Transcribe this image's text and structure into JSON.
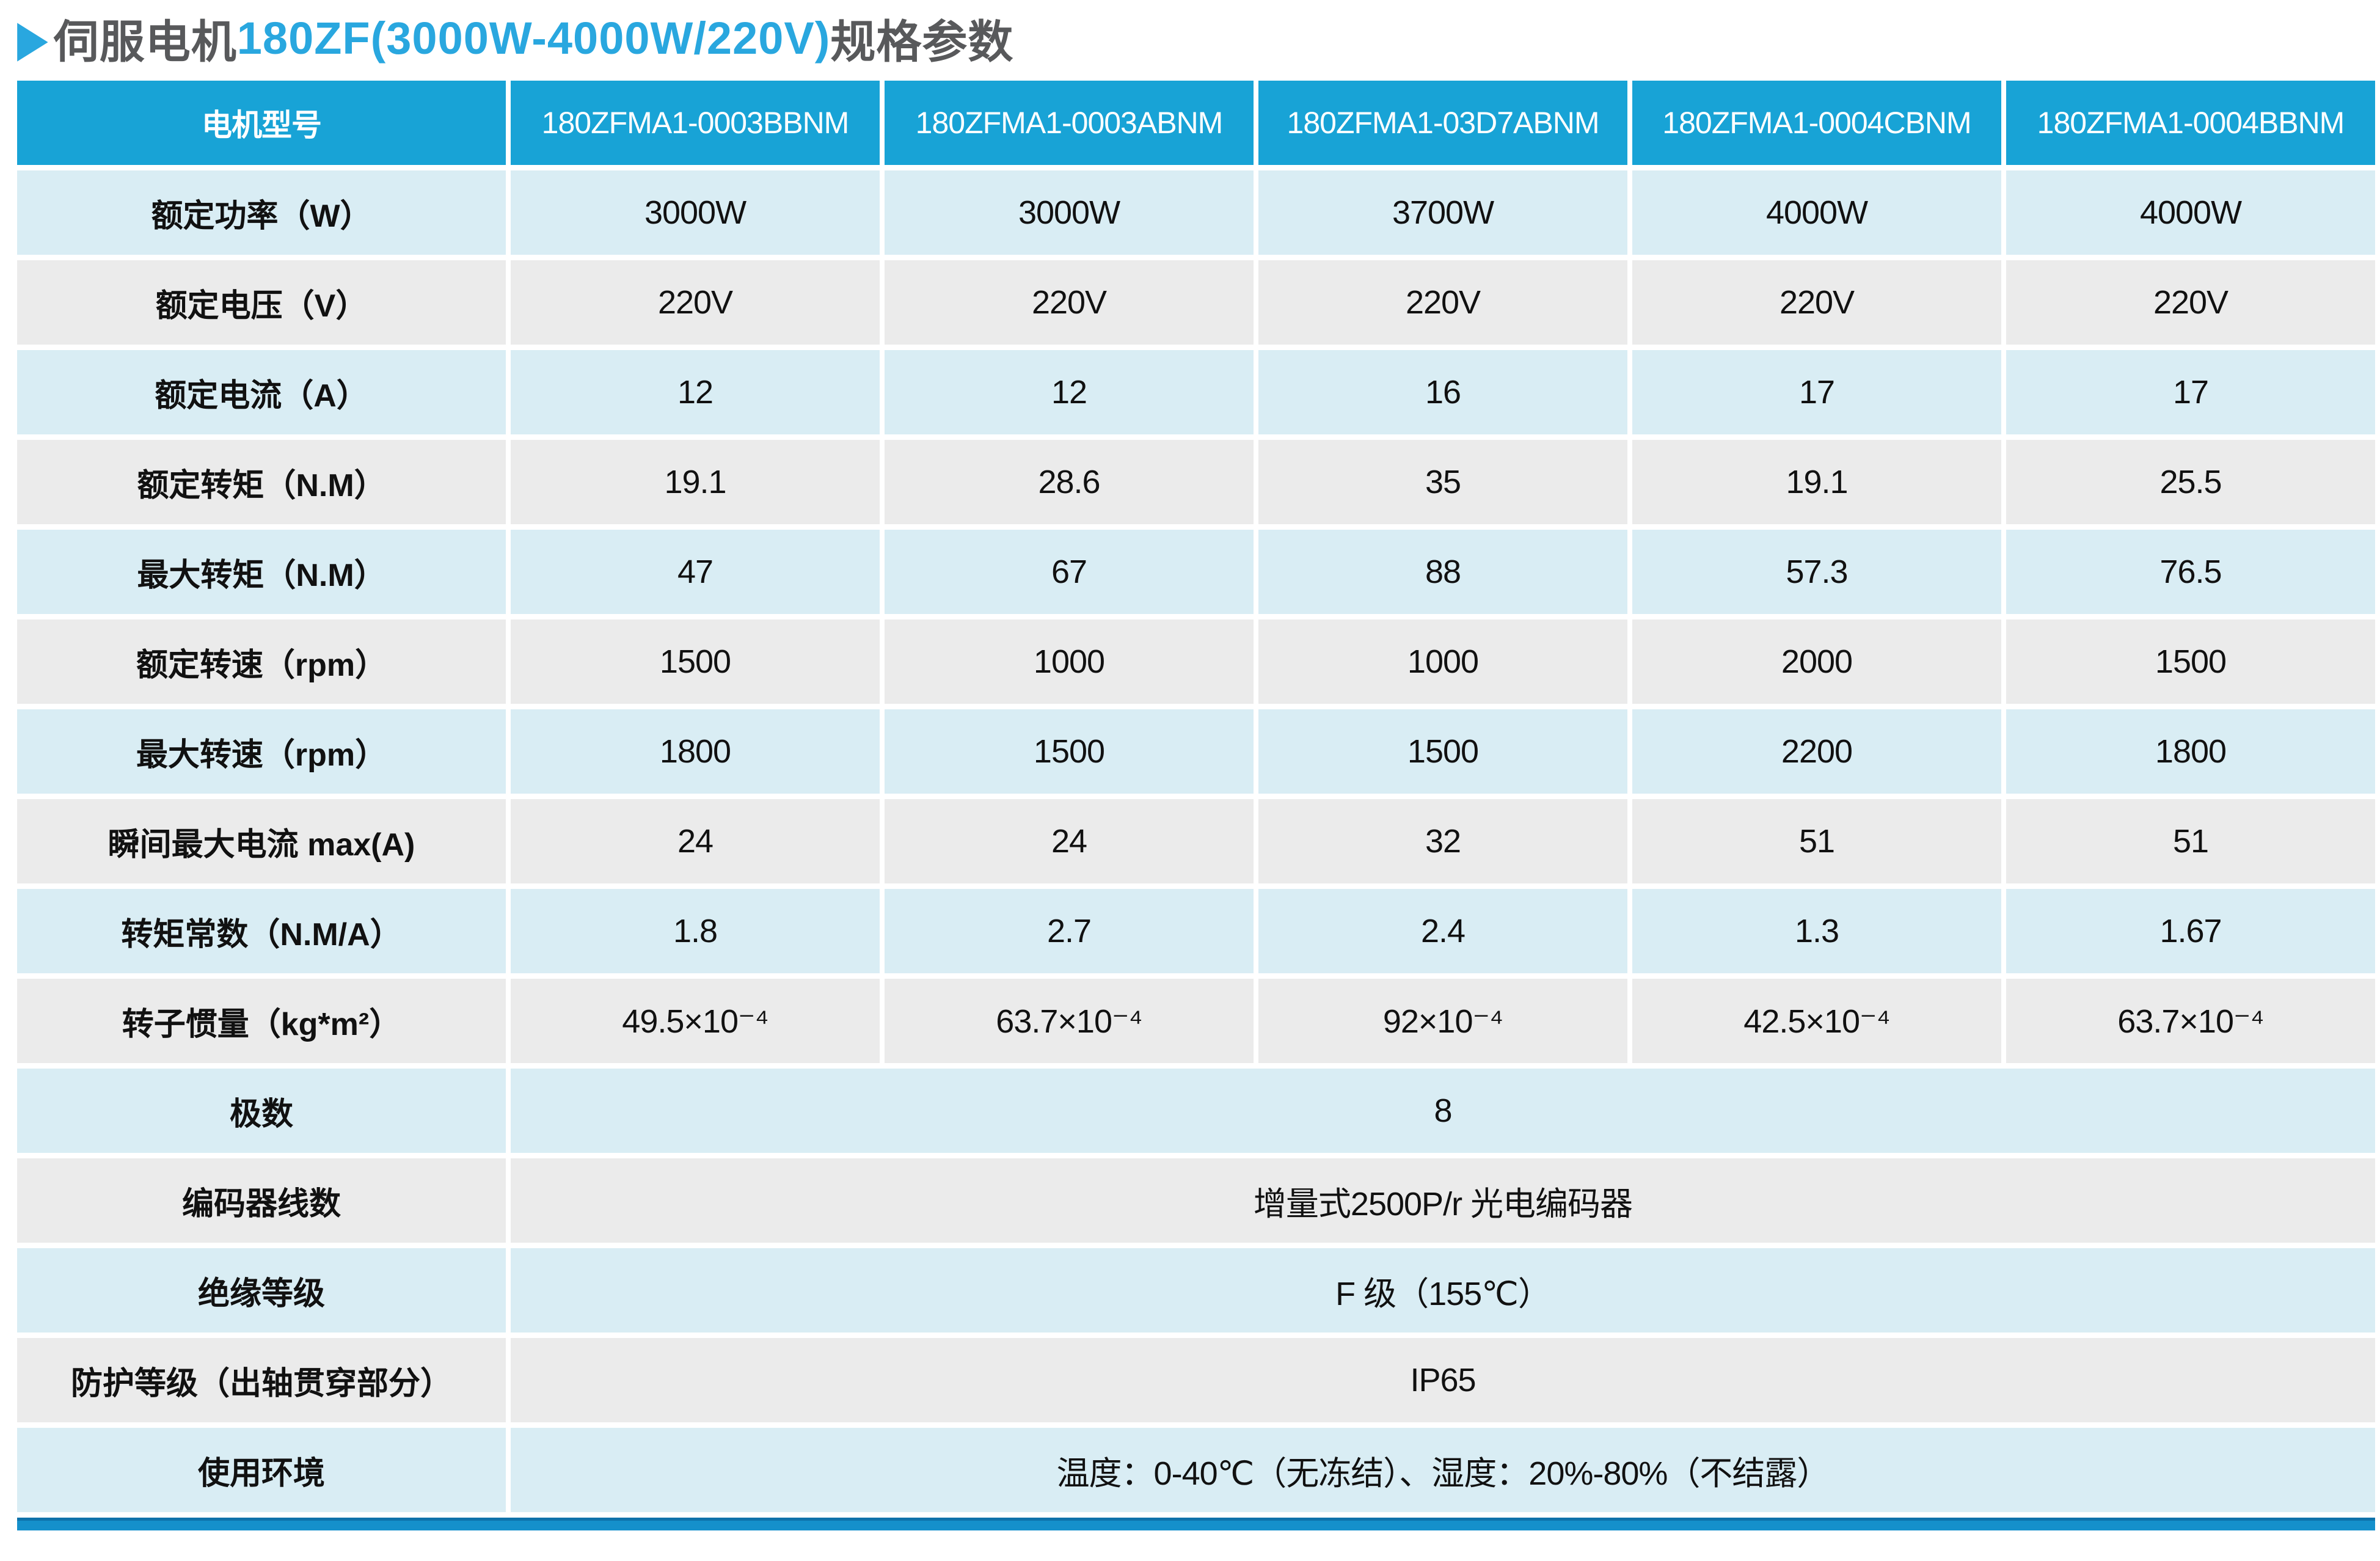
{
  "title": {
    "marker": "▶",
    "prefix": "伺服电机",
    "highlight": "180ZF(3000W-4000W/220V)",
    "suffix": "规格参数"
  },
  "colors": {
    "header_bg": "#18a3d6",
    "row_light_blue": "#d9edf4",
    "row_light_gray": "#ebebeb",
    "accent_blue": "#29a7df",
    "title_gray": "#58595b",
    "bottom_bar_blue": "#1590cb"
  },
  "table": {
    "header": {
      "label": "电机型号",
      "models": [
        "180ZFMA1-0003BBNM",
        "180ZFMA1-0003ABNM",
        "180ZFMA1-03D7ABNM",
        "180ZFMA1-0004CBNM",
        "180ZFMA1-0004BBNM"
      ]
    },
    "spec_rows": [
      {
        "label": "额定功率（W）",
        "values": [
          "3000W",
          "3000W",
          "3700W",
          "4000W",
          "4000W"
        ]
      },
      {
        "label": "额定电压（V）",
        "values": [
          "220V",
          "220V",
          "220V",
          "220V",
          "220V"
        ]
      },
      {
        "label": "额定电流（A）",
        "values": [
          "12",
          "12",
          "16",
          "17",
          "17"
        ]
      },
      {
        "label": "额定转矩（N.M）",
        "values": [
          "19.1",
          "28.6",
          "35",
          "19.1",
          "25.5"
        ]
      },
      {
        "label": "最大转矩（N.M）",
        "values": [
          "47",
          "67",
          "88",
          "57.3",
          "76.5"
        ]
      },
      {
        "label": "额定转速（rpm）",
        "values": [
          "1500",
          "1000",
          "1000",
          "2000",
          "1500"
        ]
      },
      {
        "label": "最大转速（rpm）",
        "values": [
          "1800",
          "1500",
          "1500",
          "2200",
          "1800"
        ]
      },
      {
        "label": "瞬间最大电流 max(A)",
        "values": [
          "24",
          "24",
          "32",
          "51",
          "51"
        ]
      },
      {
        "label": "转矩常数（N.M/A）",
        "values": [
          "1.8",
          "2.7",
          "2.4",
          "1.3",
          "1.67"
        ]
      },
      {
        "label": "转子惯量（kg*m²）",
        "values": [
          "49.5×10⁻⁴",
          "63.7×10⁻⁴",
          "92×10⁻⁴",
          "42.5×10⁻⁴",
          "63.7×10⁻⁴"
        ]
      }
    ],
    "merged_rows": [
      {
        "label": "极数",
        "value": "8"
      },
      {
        "label": "编码器线数",
        "value": "增量式2500P/r 光电编码器"
      },
      {
        "label": "绝缘等级",
        "value": "F 级（155℃）"
      },
      {
        "label": "防护等级（出轴贯穿部分）",
        "value": "IP65"
      },
      {
        "label": "使用环境",
        "value": "温度：0-40℃（无冻结）、湿度：20%-80%（不结露）"
      }
    ]
  }
}
